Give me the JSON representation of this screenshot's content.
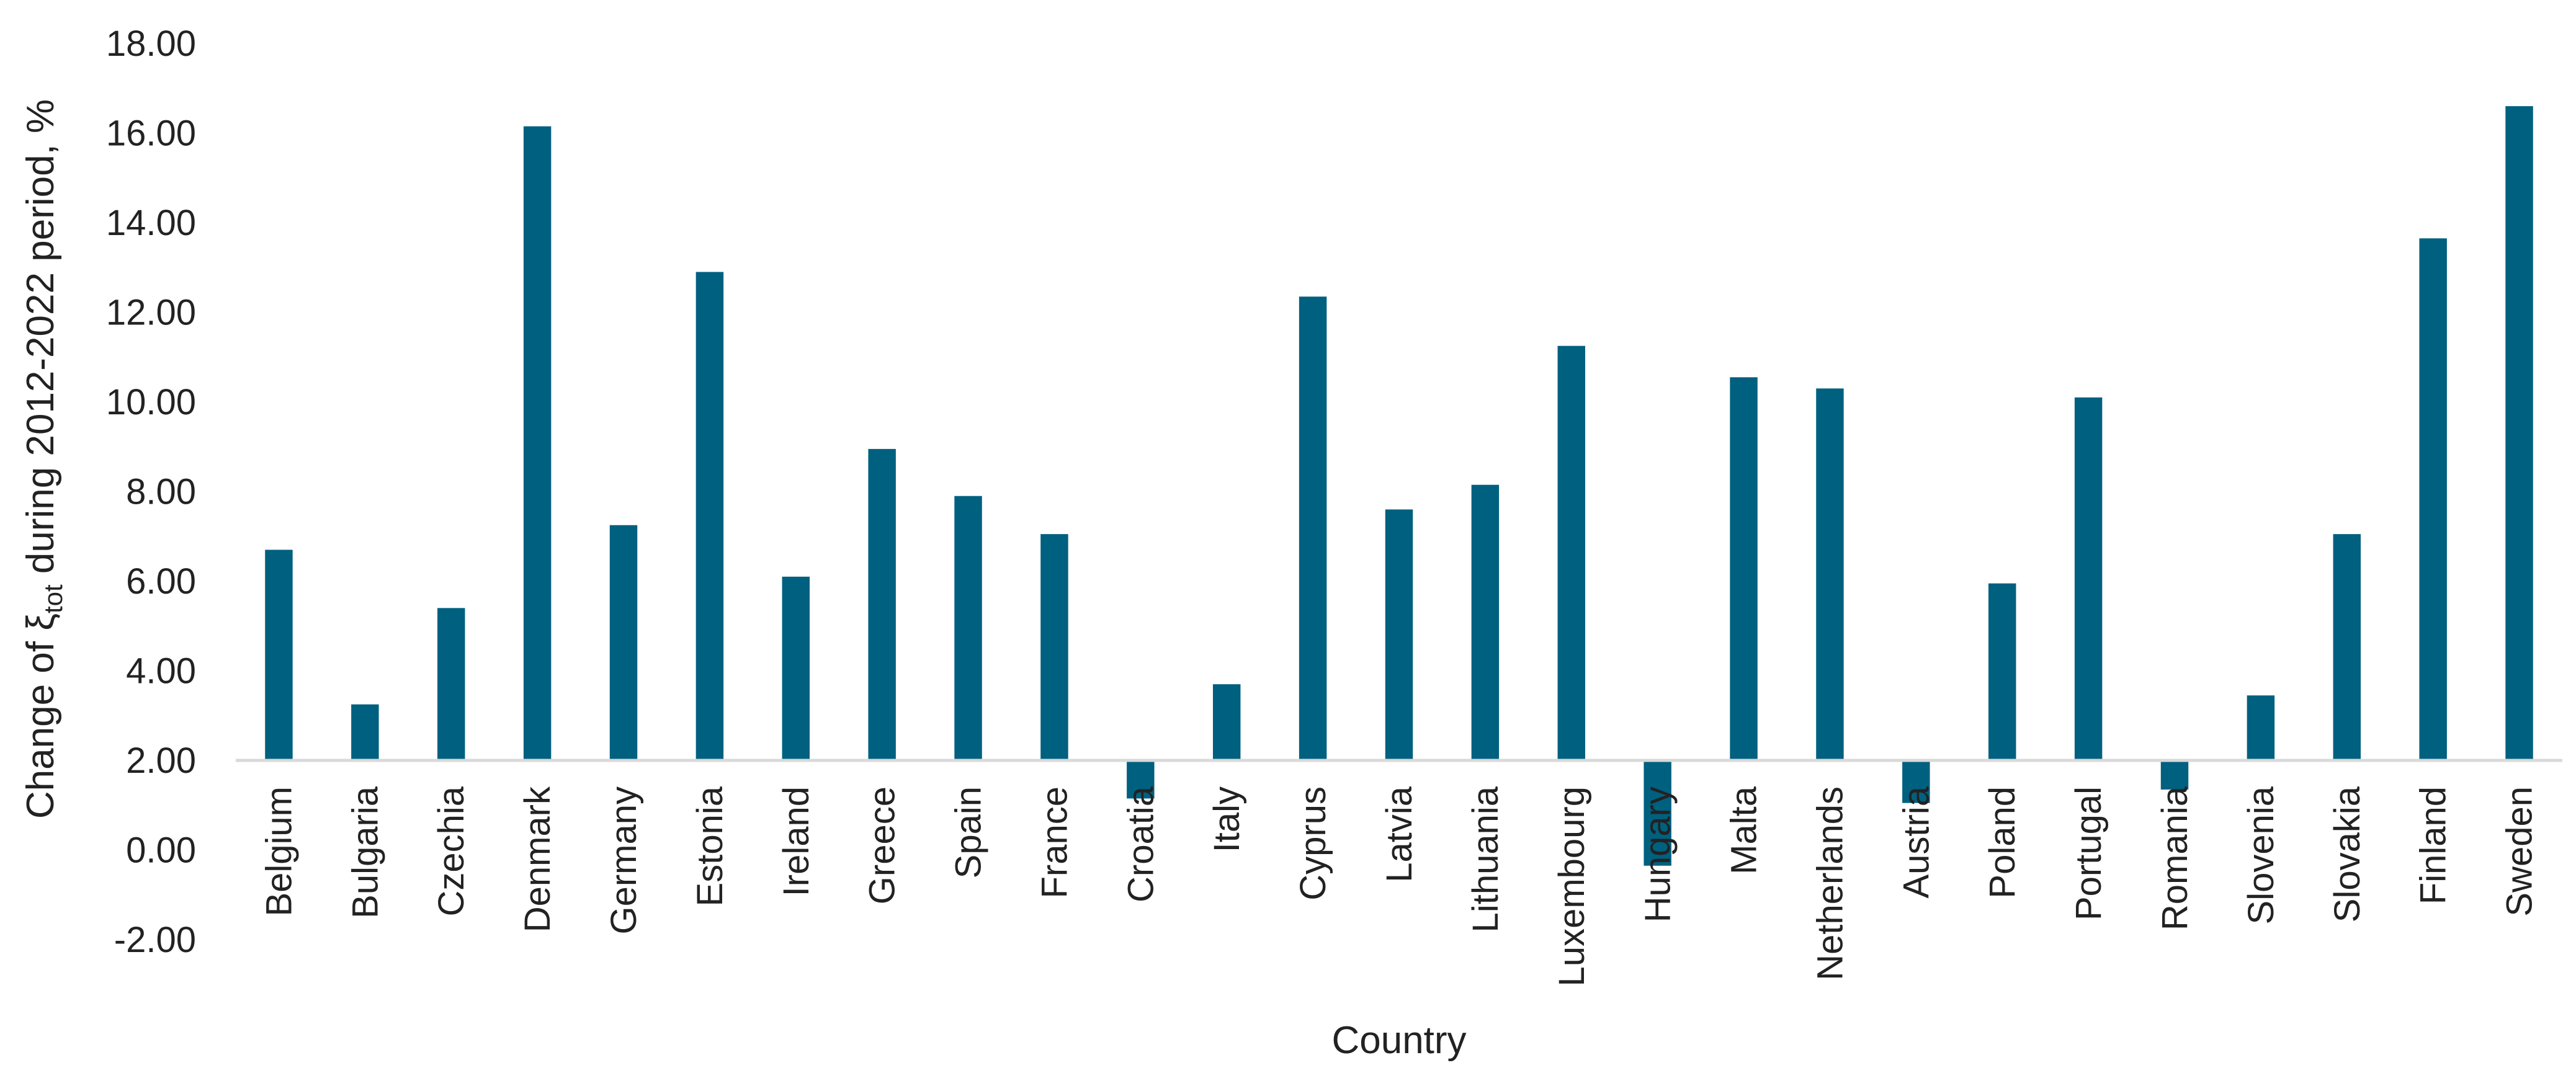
{
  "chart_data": {
    "type": "bar",
    "xlabel": "Country",
    "ylabel": {
      "prefix": "Change of ξ",
      "subscript": "tot",
      "suffix": " during 2012-2022 period, %"
    },
    "ylim": [
      -2,
      18
    ],
    "ytick_labels": [
      "-2.00",
      "0.00",
      "2.00",
      "4.00",
      "6.00",
      "8.00",
      "10.00",
      "12.00",
      "14.00",
      "16.00",
      "18.00"
    ],
    "grid": false,
    "bar_color": "#00607F",
    "axis_color": "#D9D9D9",
    "bar_base": 2,
    "categories": [
      "Belgium",
      "Bulgaria",
      "Czechia",
      "Denmark",
      "Germany",
      "Estonia",
      "Ireland",
      "Greece",
      "Spain",
      "France",
      "Croatia",
      "Italy",
      "Cyprus",
      "Latvia",
      "Lithuania",
      "Luxembourg",
      "Hungary",
      "Malta",
      "Netherlands",
      "Austria",
      "Poland",
      "Portugal",
      "Romania",
      "Slovenia",
      "Slovakia",
      "Finland",
      "Sweden"
    ],
    "values": [
      6.7,
      3.25,
      5.4,
      16.15,
      7.25,
      12.9,
      6.1,
      8.95,
      7.9,
      7.05,
      1.15,
      3.7,
      12.35,
      7.6,
      8.15,
      11.25,
      -0.35,
      10.55,
      10.3,
      1.05,
      5.95,
      10.1,
      1.35,
      3.45,
      7.05,
      13.65,
      16.6
    ]
  }
}
